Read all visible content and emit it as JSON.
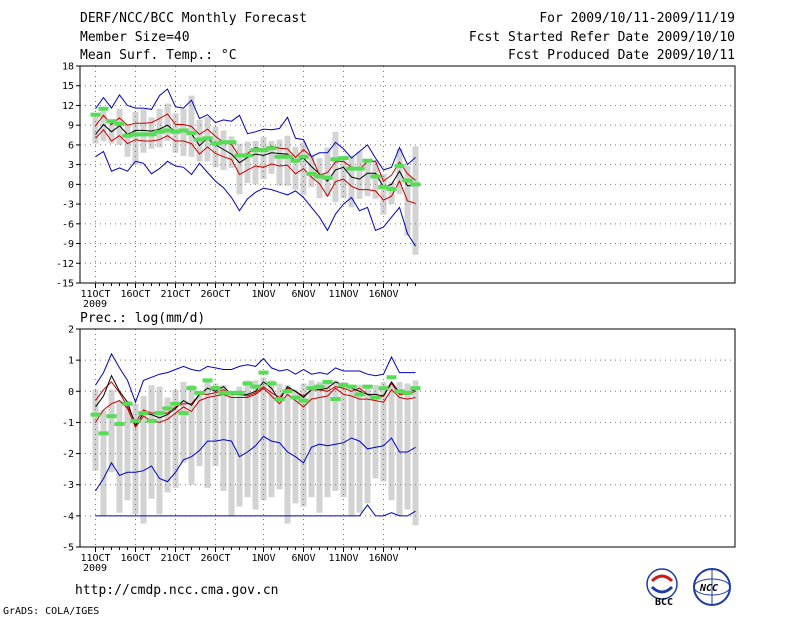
{
  "header": {
    "title": "DERF/NCC/BCC Monthly Forecast",
    "member_size": "Member Size=40",
    "variable": "Mean Surf. Temp.: °C",
    "period": "For 2009/10/11-2009/11/19",
    "start_date": "Fcst Started Refer Date 2009/10/10",
    "produced_date": "Fcst Produced Date 2009/10/11"
  },
  "footer": {
    "url": "http://cmdp.ncc.cma.gov.cn",
    "credit": "GrADS: COLA/IGES",
    "logo_bcc": "BCC",
    "logo_ncc": "NCC"
  },
  "colors": {
    "bar": "#d3d3d3",
    "mean": "#000000",
    "sd": "#cc0000",
    "extreme": "#0000cc",
    "obs": "#55dd55",
    "grid": "#777777"
  },
  "chart_data": [
    {
      "type": "area",
      "title": "Mean Surf. Temp.: °C",
      "xlabel": "",
      "ylabel": "",
      "ylim": [
        -15,
        18
      ],
      "yticks": [
        18,
        15,
        12,
        9,
        6,
        3,
        0,
        -3,
        -6,
        -9,
        -12,
        -15
      ],
      "x_tick_labels": [
        "11OCT",
        "16OCT",
        "21OCT",
        "26OCT",
        "1NOV",
        "6NOV",
        "11NOV",
        "16NOV"
      ],
      "x_tick_days": [
        0,
        5,
        10,
        15,
        21,
        26,
        31,
        36
      ],
      "year_label": "2009",
      "grid": true,
      "series": [
        {
          "name": "max",
          "values": [
            4.2,
            5,
            2,
            2.5,
            2,
            3.5,
            3.2,
            1.6,
            2.4,
            3.5,
            2.8,
            2.6,
            1.5,
            3.2,
            1.8,
            0.5,
            -0.5,
            -2,
            -4,
            -2.2,
            -1.2,
            -0.6,
            -0.8,
            -1.2,
            -1.6,
            -1,
            -2,
            -3.5,
            -5,
            -7,
            -4.5,
            -3,
            -2,
            -4,
            -3.5,
            -7,
            -6.5,
            -5,
            -3.5,
            -7.5,
            -9.4
          ]
        },
        {
          "name": "mean-sd",
          "values": [
            7,
            8.3,
            6.6,
            7.4,
            6.2,
            6.8,
            6.6,
            6.6,
            6.8,
            7.4,
            6.6,
            6.6,
            6.2,
            4.6,
            5.7,
            4.7,
            4.2,
            3.8,
            1.5,
            2.2,
            2.8,
            2.6,
            3.1,
            2.8,
            2.9,
            1.6,
            2.4,
            1.1,
            0.1,
            -1.8,
            0.4,
            0.8,
            -0.3,
            -0.8,
            -0.8,
            -1,
            -2.4,
            -1.8,
            0.5,
            -2.5,
            -2.9
          ]
        },
        {
          "name": "mean",
          "values": [
            7.6,
            9.1,
            8,
            8.9,
            7.6,
            8.2,
            8.2,
            8.1,
            8.4,
            9,
            8,
            8.1,
            7.7,
            5.9,
            7,
            6,
            5.3,
            4.6,
            3.3,
            4.1,
            4.6,
            4.4,
            4.8,
            4.7,
            4.6,
            3.6,
            4,
            2.7,
            1.6,
            0.5,
            2.2,
            2.6,
            1.1,
            0.8,
            1.7,
            1.7,
            -0.4,
            0,
            2,
            -0.2,
            -0.2
          ]
        },
        {
          "name": "mean+sd",
          "values": [
            8.9,
            10.5,
            9.1,
            10.1,
            9,
            9.3,
            9.3,
            9.4,
            10,
            10.7,
            9.1,
            9.1,
            8.8,
            7.6,
            8.4,
            7.3,
            6.4,
            6.1,
            4.2,
            4.7,
            5.6,
            5.3,
            5.8,
            5.5,
            5.4,
            4.1,
            5.3,
            4.2,
            1.4,
            1.8,
            3.4,
            3.5,
            2.6,
            2.3,
            3.5,
            3.5,
            0.5,
            1.4,
            3.4,
            1.6,
            0.6
          ]
        },
        {
          "name": "min",
          "values": [
            11.5,
            13.2,
            11.6,
            13.6,
            12,
            11.6,
            11.6,
            11.4,
            13.5,
            14.5,
            11.8,
            11.6,
            12.8,
            10,
            10.6,
            9.4,
            9.8,
            9.6,
            10.5,
            7.7,
            8,
            8.4,
            8.3,
            8.5,
            10.2,
            7,
            6.8,
            4.2,
            4.8,
            4.8,
            6.4,
            5.4,
            4,
            5,
            6,
            4,
            2.2,
            2.6,
            5.6,
            3,
            4.1
          ]
        },
        {
          "name": "observed",
          "values": [
            10.6,
            11.5,
            9.6,
            9.2,
            7.4,
            7.6,
            7.6,
            7.6,
            8,
            8.2,
            8,
            8.2,
            7.8,
            6.8,
            7,
            6.2,
            6.4,
            6.4,
            4.4,
            4.4,
            5.2,
            5.2,
            5.5,
            4.2,
            4.2,
            3.6,
            4.2,
            1.6,
            1.2,
            1,
            3.8,
            4,
            2.4,
            2.4,
            3.6,
            1.2,
            -0.4,
            -0.7,
            2.8,
            0.6,
            0
          ]
        },
        {
          "name": "ens_bar_top",
          "values": [
            10.8,
            11.2,
            9.2,
            11.5,
            9,
            11,
            11.4,
            10.2,
            11.5,
            12.3,
            10.8,
            11.5,
            13.5,
            9.8,
            10.2,
            8.8,
            8.2,
            7.3,
            6.2,
            6.5,
            6.6,
            7.2,
            6.6,
            6.8,
            7.4,
            5.7,
            6.4,
            4.3,
            4,
            5.6,
            8,
            4.2,
            4.4,
            5,
            3.7,
            3.7,
            1.6,
            0.4,
            5.4,
            2.8,
            5.8
          ]
        },
        {
          "name": "ens_bar_bottom",
          "values": [
            6.2,
            6.6,
            6.2,
            6,
            4.2,
            3,
            4.8,
            5.4,
            5.6,
            6.6,
            4.8,
            4.3,
            4.2,
            3.5,
            3.5,
            2.6,
            2.2,
            2.5,
            -1.5,
            0.2,
            0,
            0.8,
            1.6,
            -0.2,
            -0.2,
            -0.8,
            -1.6,
            -0.4,
            -2.1,
            -1.8,
            -2.7,
            -2.1,
            -3.5,
            -2.2,
            -1.8,
            -2.2,
            -4.6,
            -3,
            -1.5,
            -7.8,
            -10.7
          ]
        }
      ]
    },
    {
      "type": "area",
      "title": "Prec.: log(mm/d)",
      "xlabel": "",
      "ylabel": "",
      "ylim": [
        -5,
        2
      ],
      "yticks": [
        2,
        1,
        0,
        -1,
        -2,
        -3,
        -4,
        -5
      ],
      "x_tick_labels": [
        "11OCT",
        "16OCT",
        "21OCT",
        "26OCT",
        "1NOV",
        "6NOV",
        "11NOV",
        "16NOV"
      ],
      "x_tick_days": [
        0,
        5,
        10,
        15,
        21,
        26,
        31,
        36
      ],
      "year_label": "2009",
      "grid": true,
      "series": [
        {
          "name": "max",
          "values": [
            0.2,
            0.6,
            1.2,
            0.75,
            0.35,
            -0.35,
            0.35,
            0.45,
            0.55,
            0.6,
            0.7,
            0.8,
            0.7,
            0.65,
            0.8,
            0.75,
            0.7,
            0.7,
            0.8,
            0.85,
            0.8,
            1.05,
            0.75,
            0.65,
            0.7,
            0.55,
            0.7,
            0.55,
            0.6,
            0.55,
            0.75,
            0.65,
            0.65,
            0.65,
            0.55,
            0.5,
            0.55,
            1.1,
            0.6,
            0.6,
            0.6
          ]
        },
        {
          "name": "mean+sd",
          "values": [
            -0.3,
            0.05,
            0.3,
            -0.05,
            -0.5,
            -1,
            -0.6,
            -0.7,
            -0.7,
            -0.7,
            -0.5,
            -0.4,
            -0.4,
            -0.1,
            -0.1,
            -0.05,
            0.05,
            -0.1,
            -0.1,
            -0.15,
            -0.05,
            0.15,
            -0.05,
            -0.2,
            0.1,
            0,
            -0.15,
            0.05,
            0.05,
            0,
            0.15,
            0.1,
            0,
            0.1,
            -0.1,
            -0.2,
            -0.15,
            0.25,
            -0.1,
            -0.1,
            0
          ]
        },
        {
          "name": "mean",
          "values": [
            -0.5,
            -0.15,
            0.5,
            0,
            -0.35,
            -1.1,
            -0.7,
            -0.75,
            -0.85,
            -0.75,
            -0.55,
            -0.3,
            -0.45,
            -0.1,
            0.1,
            0,
            0.15,
            -0.1,
            -0.1,
            -0.1,
            0,
            0.3,
            0.1,
            -0.3,
            0.15,
            0,
            -0.2,
            0.05,
            0.05,
            0.1,
            0.3,
            0.2,
            0.1,
            0,
            -0.1,
            -0.1,
            -0.15,
            0.3,
            -0.05,
            -0.05,
            0.05
          ]
        },
        {
          "name": "mean-sd",
          "values": [
            -1,
            -0.6,
            -0.4,
            -0.3,
            -0.55,
            -1.15,
            -0.8,
            -0.95,
            -1,
            -0.9,
            -0.7,
            -0.5,
            -0.65,
            -0.3,
            -0.2,
            -0.15,
            -0.1,
            -0.2,
            -0.2,
            -0.2,
            -0.1,
            0.1,
            -0.15,
            -0.4,
            -0.1,
            -0.3,
            -0.5,
            -0.25,
            -0.2,
            -0.15,
            0.1,
            -0.1,
            -0.15,
            -0.25,
            -0.25,
            -0.3,
            -0.35,
            0.05,
            -0.2,
            -0.25,
            -0.2
          ]
        },
        {
          "name": "min",
          "values": [
            -3.2,
            -2.8,
            -2.3,
            -2.7,
            -2.6,
            -2.6,
            -2.55,
            -2.4,
            -2.8,
            -2.9,
            -2.6,
            -2.2,
            -2.1,
            -1.9,
            -1.6,
            -1.6,
            -1.55,
            -1.6,
            -2.1,
            -1.95,
            -1.75,
            -1.45,
            -1.6,
            -1.65,
            -1.95,
            -2.1,
            -2.3,
            -1.8,
            -1.7,
            -1.75,
            -1.7,
            -1.65,
            -1.5,
            -1.6,
            -1.85,
            -1.8,
            -1.75,
            -1.5,
            -1.95,
            -1.95,
            -1.8
          ]
        },
        {
          "name": "lowest",
          "values": [
            -4,
            -4,
            -4,
            -4,
            -4,
            -4,
            -4,
            -4,
            -4,
            -4,
            -4,
            -4,
            -4,
            -4,
            -4,
            -4,
            -4,
            -4,
            -4,
            -4,
            -4,
            -4,
            -4,
            -4,
            -4,
            -4,
            -4,
            -4,
            -4,
            -4,
            -4,
            -4,
            -4,
            -4,
            -3.65,
            -4,
            -4,
            -3.9,
            -4,
            -4,
            -3.85
          ]
        },
        {
          "name": "observed",
          "values": [
            -0.75,
            -1.35,
            -0.8,
            -1.05,
            -0.4,
            -0.95,
            -0.7,
            -0.95,
            -0.7,
            -0.55,
            -0.4,
            -0.7,
            0.1,
            -0.05,
            0.35,
            0.1,
            -0.05,
            -0.05,
            -0.05,
            0.25,
            0.15,
            0.6,
            0.25,
            -0.25,
            0,
            -0.2,
            -0.3,
            0.1,
            0.15,
            0.3,
            -0.25,
            0.2,
            0.15,
            -0.1,
            0.15,
            -0.2,
            0.1,
            0.45,
            0,
            -0.05,
            0.1
          ]
        },
        {
          "name": "ens_bar_top",
          "values": [
            0.05,
            -0.6,
            0.05,
            -0.3,
            -0.3,
            -0.4,
            -0.15,
            0.2,
            0.15,
            -0.2,
            0.05,
            0.3,
            0.2,
            -0.1,
            0.35,
            0.25,
            0.2,
            -0.05,
            0.15,
            0.35,
            0.35,
            0.45,
            0.35,
            0.25,
            0.2,
            0.05,
            0.25,
            0.35,
            0.3,
            0.25,
            0.35,
            0.3,
            0.2,
            0.2,
            0.2,
            0.2,
            0.3,
            0.25,
            0.3,
            0.25,
            0.35
          ]
        },
        {
          "name": "ens_bar_bottom",
          "values": [
            -2.55,
            -4,
            -2.6,
            -3.9,
            -3.5,
            -3.95,
            -4.25,
            -3.45,
            -3.95,
            -3.25,
            -3.1,
            -2.3,
            -3,
            -2.4,
            -3.1,
            -2.4,
            -3.2,
            -4,
            -3.7,
            -3.4,
            -3.8,
            -3.5,
            -3.4,
            -3.15,
            -4.25,
            -3.6,
            -3.7,
            -3.4,
            -3.9,
            -3.4,
            -3.2,
            -3.4,
            -4,
            -3.9,
            -3.6,
            -2.8,
            -2.9,
            -3.5,
            -4,
            -3.8,
            -4.3
          ]
        }
      ]
    }
  ]
}
